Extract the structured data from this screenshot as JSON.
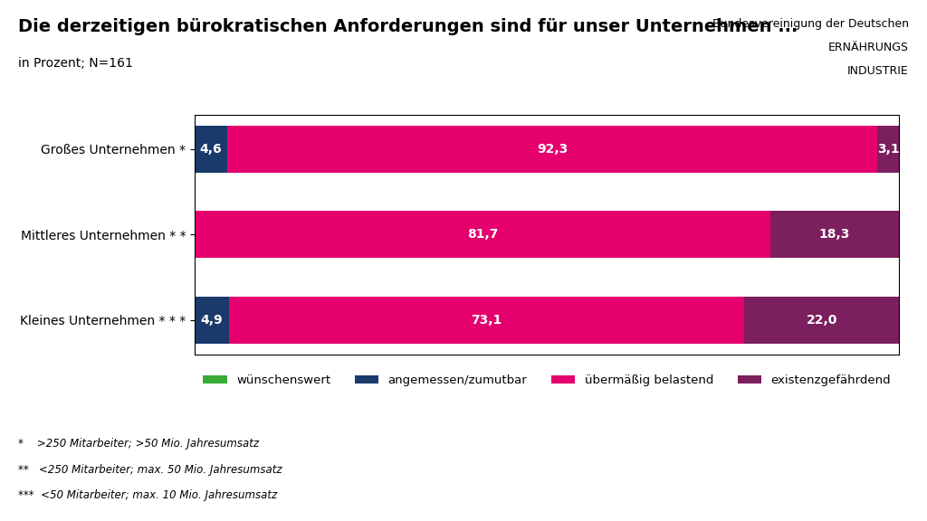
{
  "chart_data": {
    "type": "bar",
    "orientation": "horizontal",
    "stacked": true,
    "title": "Die derzeitigen bürokratischen Anforderungen sind für unser Unternehmen ...",
    "subtitle": "in Prozent; N=161",
    "categories": [
      "Großes Unternehmen *",
      "Mittleres Unternehmen * *",
      "Kleines Unternehmen * * *"
    ],
    "series": [
      {
        "name": "wünschenswert",
        "color": "#3aaa35",
        "values": [
          0.0,
          0.0,
          0.0
        ],
        "value_labels": [
          null,
          null,
          null
        ]
      },
      {
        "name": "angemessen/zumutbar",
        "color": "#1a3a6b",
        "values": [
          4.6,
          0.0,
          4.9
        ],
        "value_labels": [
          "4,6",
          null,
          "4,9"
        ]
      },
      {
        "name": "übermäßig belastend",
        "color": "#e5006e",
        "values": [
          92.3,
          81.7,
          73.1
        ],
        "value_labels": [
          "92,3",
          "81,7",
          "73,1"
        ]
      },
      {
        "name": "existenzgefährdend",
        "color": "#7b1f5e",
        "values": [
          3.1,
          18.3,
          22.0
        ],
        "value_labels": [
          "3,1",
          "18,3",
          "22,0"
        ]
      }
    ],
    "xlim": [
      0,
      100
    ],
    "tick_labels": "y",
    "data_labels": true,
    "legend": "upper center",
    "annotations": [
      "Bundesvereinigung der Deutschen",
      "ERNÄHRUNGS",
      "INDUSTRIE",
      "*    >250 Mitarbeiter; >50 Mio. Jahresumsatz",
      "**   <250 Mitarbeiter; max. 50 Mio. Jahresumsatz",
      "***  <50 Mitarbeiter; max. 10 Mio. Jahresumsatz"
    ]
  }
}
